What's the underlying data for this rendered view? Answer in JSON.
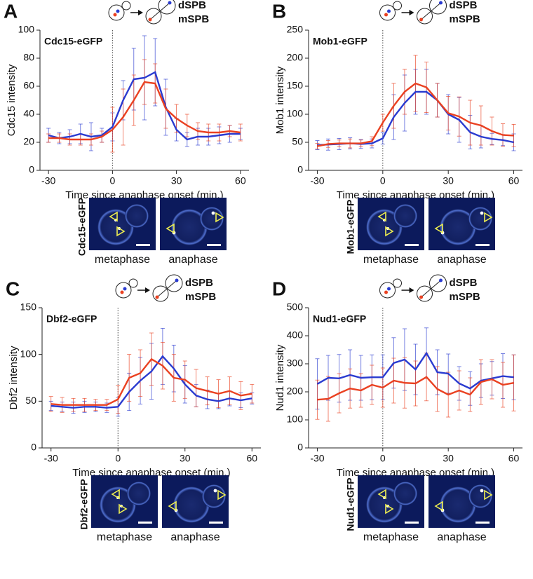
{
  "chart_data": [
    {
      "type": "line",
      "panel_label": "A",
      "annotation": "Cdc15-eGFP",
      "y_label": "Cdc15 intensity",
      "x_label": "Time since anaphase onset (min.)",
      "x": [
        -30,
        -25,
        -20,
        -15,
        -10,
        -5,
        0,
        5,
        10,
        15,
        20,
        25,
        30,
        35,
        40,
        45,
        50,
        55,
        60
      ],
      "xlim": [
        -34,
        64
      ],
      "xticks": [
        -30,
        0,
        30,
        60
      ],
      "ylim": [
        0,
        100
      ],
      "yticks": [
        0,
        20,
        40,
        60,
        80,
        100
      ],
      "reference_line_x": 0,
      "series": [
        {
          "name": "dSPB",
          "color": "#2a3bd0",
          "values": [
            25,
            23,
            24,
            26,
            24,
            25,
            31,
            50,
            65,
            66,
            70,
            45,
            29,
            22,
            24,
            24,
            25,
            26,
            26
          ],
          "errors": [
            5,
            4,
            5,
            7,
            10,
            5,
            10,
            14,
            22,
            30,
            24,
            20,
            8,
            5,
            6,
            6,
            6,
            6,
            4
          ]
        },
        {
          "name": "mSPB",
          "color": "#ea4121",
          "values": [
            23,
            23,
            22,
            22,
            22,
            24,
            29,
            38,
            50,
            63,
            62,
            44,
            37,
            32,
            28,
            27,
            27,
            28,
            27
          ],
          "errors": [
            3,
            3,
            4,
            4,
            4,
            4,
            16,
            20,
            18,
            16,
            14,
            14,
            10,
            8,
            6,
            6,
            6,
            4,
            6
          ]
        }
      ],
      "image_label": "Cdc15-eGFP",
      "image_captions": [
        "metaphase",
        "anaphase"
      ]
    },
    {
      "type": "line",
      "panel_label": "B",
      "annotation": "Mob1-eGFP",
      "y_label": "Mob1 intensity",
      "x_label": "Time since anaphase onset (min.)",
      "x": [
        -30,
        -25,
        -20,
        -15,
        -10,
        -5,
        0,
        5,
        10,
        15,
        20,
        25,
        30,
        35,
        40,
        45,
        50,
        55,
        60
      ],
      "xlim": [
        -34,
        64
      ],
      "xticks": [
        -30,
        0,
        30,
        60
      ],
      "ylim": [
        0,
        250
      ],
      "yticks": [
        0,
        50,
        100,
        150,
        200,
        250
      ],
      "reference_line_x": 0,
      "series": [
        {
          "name": "dSPB",
          "color": "#2a3bd0",
          "values": [
            45,
            46,
            47,
            48,
            47,
            48,
            57,
            95,
            120,
            140,
            140,
            125,
            100,
            90,
            68,
            60,
            56,
            54,
            50
          ],
          "errors": [
            8,
            10,
            10,
            10,
            8,
            8,
            10,
            40,
            50,
            40,
            40,
            30,
            35,
            40,
            30,
            20,
            10,
            10,
            15
          ]
        },
        {
          "name": "mSPB",
          "color": "#ea4121",
          "values": [
            43,
            47,
            48,
            48,
            48,
            52,
            85,
            115,
            140,
            155,
            148,
            125,
            102,
            96,
            85,
            80,
            70,
            63,
            62
          ],
          "errors": [
            5,
            6,
            6,
            8,
            6,
            8,
            15,
            40,
            40,
            50,
            45,
            30,
            30,
            35,
            40,
            35,
            25,
            20,
            20
          ]
        }
      ],
      "image_label": "Mob1-eGFP",
      "image_captions": [
        "metaphase",
        "anaphase"
      ]
    },
    {
      "type": "line",
      "panel_label": "C",
      "annotation": "Dbf2-eGFP",
      "y_label": "Dbf2 intensity",
      "x_label": "Time since anaphase onset (min.)",
      "x": [
        -30,
        -25,
        -20,
        -15,
        -10,
        -5,
        0,
        5,
        10,
        15,
        20,
        25,
        30,
        35,
        40,
        45,
        50,
        55,
        60
      ],
      "xlim": [
        -34,
        64
      ],
      "xticks": [
        -30,
        0,
        30,
        60
      ],
      "ylim": [
        0,
        150
      ],
      "yticks": [
        0,
        50,
        100,
        150
      ],
      "reference_line_x": 0,
      "series": [
        {
          "name": "dSPB",
          "color": "#2a3bd0",
          "values": [
            45,
            44,
            43,
            44,
            44,
            43,
            44,
            60,
            72,
            82,
            98,
            85,
            68,
            56,
            52,
            50,
            53,
            51,
            53
          ],
          "errors": [
            5,
            5,
            6,
            6,
            5,
            5,
            10,
            20,
            25,
            30,
            30,
            25,
            20,
            12,
            10,
            8,
            8,
            8,
            6
          ]
        },
        {
          "name": "mSPB",
          "color": "#ea4121",
          "values": [
            47,
            46,
            46,
            46,
            46,
            46,
            52,
            75,
            80,
            95,
            88,
            75,
            73,
            64,
            61,
            58,
            61,
            56,
            58
          ],
          "errors": [
            8,
            8,
            7,
            7,
            6,
            6,
            15,
            25,
            25,
            28,
            25,
            25,
            20,
            20,
            15,
            15,
            15,
            15,
            10
          ]
        }
      ],
      "image_label": "Dbf2-eGFP",
      "image_captions": [
        "metaphase",
        "anaphase"
      ]
    },
    {
      "type": "line",
      "panel_label": "D",
      "annotation": "Nud1-eGFP",
      "y_label": "Nud1 intensity",
      "x_label": "Time since anaphase onset (min.)",
      "x": [
        -30,
        -25,
        -20,
        -15,
        -10,
        -5,
        0,
        5,
        10,
        15,
        20,
        25,
        30,
        35,
        40,
        45,
        50,
        55,
        60
      ],
      "xlim": [
        -34,
        64
      ],
      "xticks": [
        -30,
        0,
        30,
        60
      ],
      "ylim": [
        0,
        500
      ],
      "yticks": [
        0,
        100,
        200,
        300,
        400,
        500
      ],
      "reference_line_x": 0,
      "series": [
        {
          "name": "dSPB",
          "color": "#2a3bd0",
          "values": [
            228,
            250,
            248,
            260,
            250,
            252,
            252,
            303,
            315,
            280,
            338,
            270,
            265,
            230,
            212,
            240,
            248,
            256,
            252
          ],
          "errors": [
            90,
            80,
            85,
            90,
            80,
            80,
            80,
            90,
            110,
            90,
            90,
            80,
            70,
            60,
            60,
            60,
            60,
            80,
            80
          ]
        },
        {
          "name": "mSPB",
          "color": "#ea4121",
          "values": [
            172,
            175,
            195,
            212,
            205,
            225,
            215,
            240,
            232,
            230,
            253,
            210,
            190,
            205,
            190,
            235,
            245,
            225,
            232
          ],
          "errors": [
            70,
            80,
            70,
            70,
            60,
            70,
            70,
            80,
            90,
            80,
            85,
            80,
            80,
            70,
            60,
            80,
            70,
            80,
            100
          ]
        }
      ],
      "image_label": "Nud1-eGFP",
      "image_captions": [
        "metaphase",
        "anaphase"
      ]
    }
  ]
}
